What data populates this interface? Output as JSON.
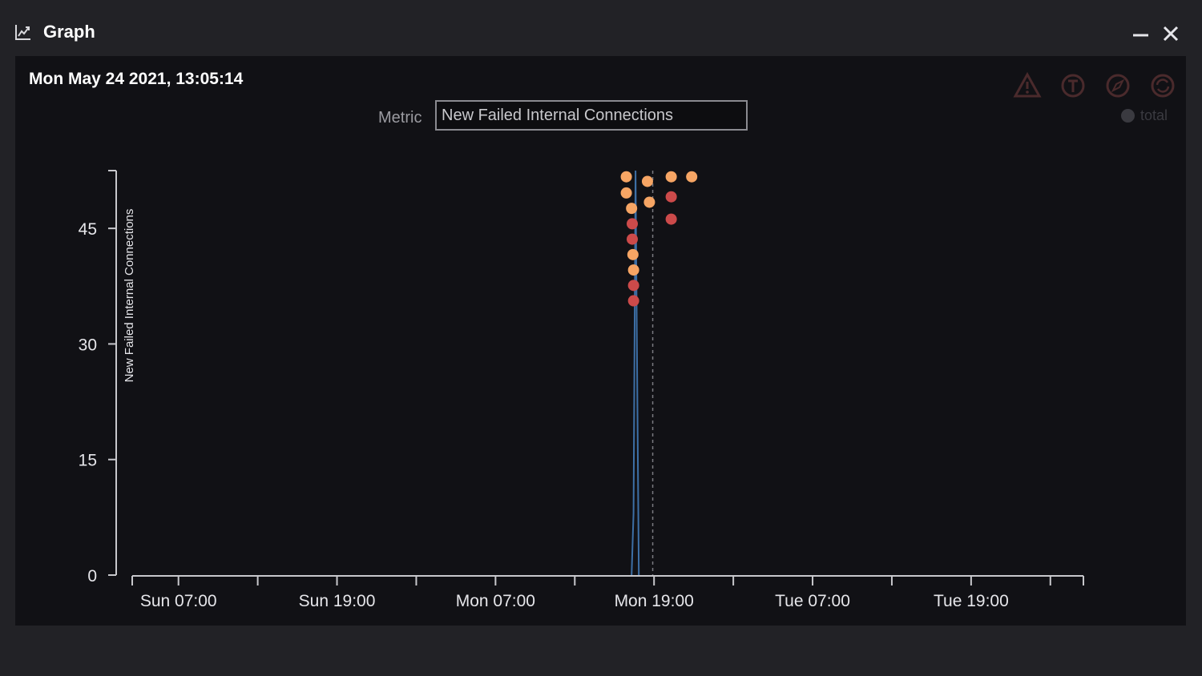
{
  "window": {
    "title": "Graph",
    "title_icon": "line-chart-icon",
    "controls": [
      "minimize-icon",
      "close-icon"
    ]
  },
  "panel": {
    "timestamp": "Mon May 24 2021, 13:05:14",
    "metric_label": "Metric",
    "metric_value": "New Failed Internal Connections",
    "toolbar_icons": [
      "warning-triangle-icon",
      "t-circle-icon",
      "compass-icon",
      "refresh-icon"
    ],
    "legend": {
      "label": "total",
      "color": "#3a3a40"
    }
  },
  "colors": {
    "background": "#222226",
    "panel": "#111115",
    "line": "#3d6fa5",
    "point_orange": "#f6a564",
    "point_red": "#cc4a4a"
  },
  "chart_data": {
    "type": "line",
    "ylabel": "New Failed Internal Connections",
    "xlabel": "",
    "yticks": [
      0,
      15,
      30,
      45
    ],
    "ylim": [
      0,
      52.5
    ],
    "xticks": [
      "Sun 07:00",
      "Sun 19:00",
      "Mon 07:00",
      "Mon 19:00",
      "Tue 07:00",
      "Tue 19:00"
    ],
    "x_range_hours": [
      -3.5,
      68.5
    ],
    "x_origin": "Sun 07:00",
    "current_time_marker_hours": 35.9,
    "series": [
      {
        "color": "#3d6fa5",
        "points": [
          [
            34.3,
            0
          ],
          [
            34.45,
            8
          ],
          [
            34.6,
            52.5
          ],
          [
            34.7,
            30
          ],
          [
            34.85,
            0
          ]
        ]
      }
    ],
    "scatter": [
      {
        "x": 33.9,
        "y": 51.7,
        "color": "orange"
      },
      {
        "x": 33.9,
        "y": 49.6,
        "color": "orange"
      },
      {
        "x": 34.3,
        "y": 47.6,
        "color": "orange"
      },
      {
        "x": 34.35,
        "y": 45.6,
        "color": "red"
      },
      {
        "x": 34.35,
        "y": 43.6,
        "color": "red"
      },
      {
        "x": 34.4,
        "y": 41.6,
        "color": "orange"
      },
      {
        "x": 34.45,
        "y": 39.6,
        "color": "orange"
      },
      {
        "x": 34.45,
        "y": 37.6,
        "color": "red"
      },
      {
        "x": 34.45,
        "y": 35.6,
        "color": "red"
      },
      {
        "x": 35.5,
        "y": 51.1,
        "color": "orange"
      },
      {
        "x": 35.65,
        "y": 48.4,
        "color": "orange"
      },
      {
        "x": 37.3,
        "y": 51.7,
        "color": "orange"
      },
      {
        "x": 37.3,
        "y": 49.1,
        "color": "red"
      },
      {
        "x": 37.3,
        "y": 46.2,
        "color": "red"
      },
      {
        "x": 38.85,
        "y": 51.7,
        "color": "orange"
      }
    ]
  }
}
